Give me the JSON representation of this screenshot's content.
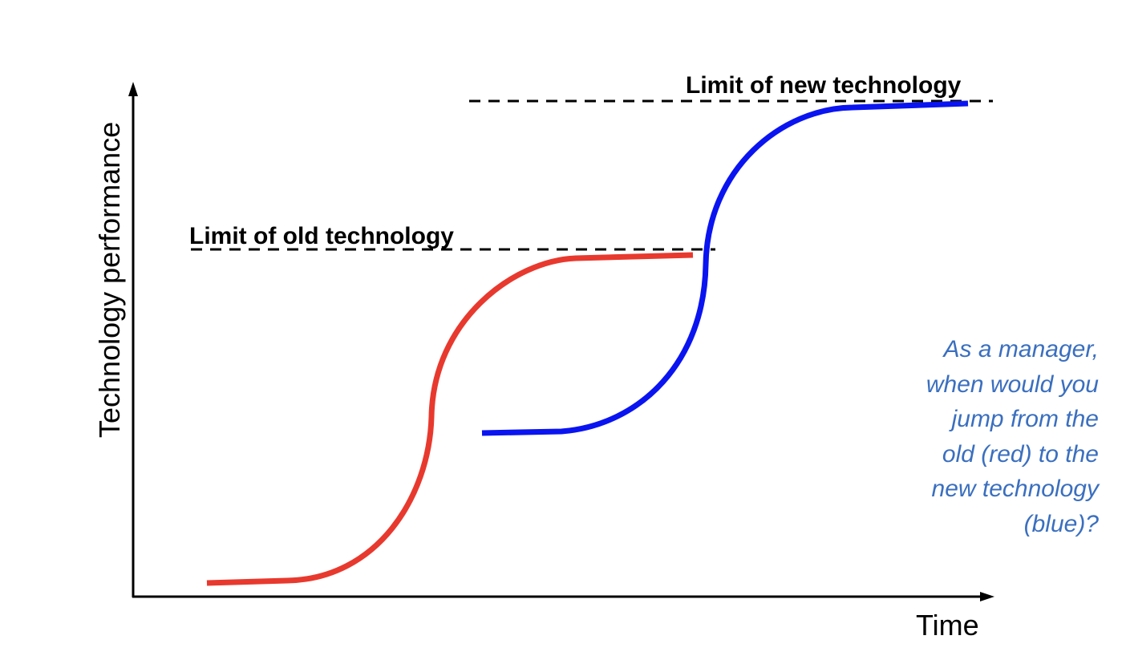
{
  "axes": {
    "y_label": "Technology performance",
    "x_label": "Time"
  },
  "limits": {
    "old_label": "Limit of old technology",
    "new_label": "Limit of new technology"
  },
  "curves": {
    "old": {
      "color": "#e8392e"
    },
    "new": {
      "color": "#0a14f0"
    }
  },
  "question": {
    "text": "As a manager,\nwhen would you\njump from the\nold (red) to the\nnew technology\n(blue)?",
    "color": "#3a6fbf"
  }
}
